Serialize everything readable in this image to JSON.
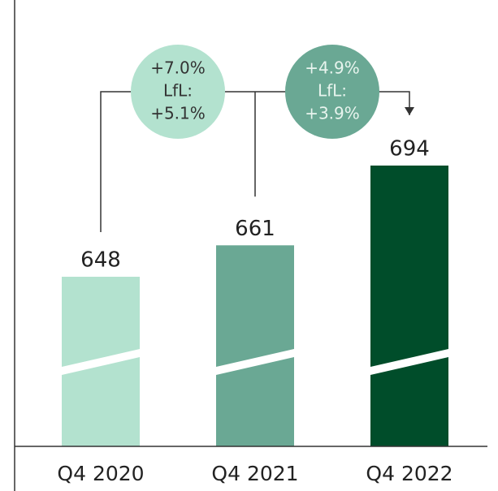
{
  "chart_data": {
    "type": "bar",
    "categories": [
      "Q4 2020",
      "Q4 2021",
      "Q4 2022"
    ],
    "values": [
      648,
      661,
      694
    ],
    "colors": [
      "#b3e2cf",
      "#6aa894",
      "#004d2a"
    ],
    "annotations": [
      {
        "lines": [
          "+7.0%",
          "LfL:",
          "+5.1%"
        ],
        "color": "#b3e2cf",
        "text_color": "#333333"
      },
      {
        "lines": [
          "+4.9%",
          "LfL:",
          "+3.9%"
        ],
        "color": "#6aa894",
        "text_color": "#e8f4ee"
      }
    ]
  }
}
